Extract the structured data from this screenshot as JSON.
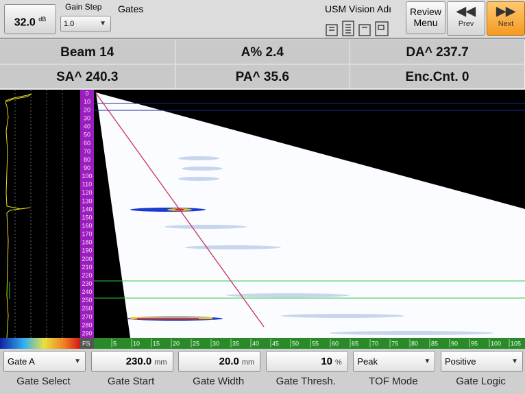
{
  "top_bar": {
    "gain": {
      "value": "32.0",
      "unit": "dB"
    },
    "gain_step": {
      "label": "Gain Step",
      "value": "1.0"
    },
    "screen_title": "Gates",
    "device": "USM Vision Adı",
    "review": "Review Menu",
    "prev": "Prev",
    "next": "Next"
  },
  "readings": [
    [
      "Beam 14",
      "A% 2.4",
      "DA^ 237.7"
    ],
    [
      "SA^ 240.3",
      "PA^ 35.6",
      "Enc.Cnt. 0"
    ]
  ],
  "depth_scale": [
    0,
    10,
    20,
    30,
    40,
    50,
    60,
    70,
    80,
    90,
    100,
    110,
    120,
    130,
    140,
    150,
    160,
    170,
    180,
    190,
    200,
    210,
    220,
    230,
    240,
    250,
    260,
    270,
    280,
    290
  ],
  "scan_scale": {
    "origin": "FS",
    "ticks": [
      5,
      10,
      15,
      20,
      25,
      30,
      35,
      40,
      45,
      50,
      55,
      60,
      65,
      70,
      75,
      80,
      85,
      90,
      95,
      100,
      105
    ]
  },
  "controls": [
    {
      "value": "Gate A",
      "label": "Gate Select"
    },
    {
      "value": "230.0",
      "unit": "mm",
      "label": "Gate Start"
    },
    {
      "value": "20.0",
      "unit": "mm",
      "label": "Gate Width"
    },
    {
      "value": "10",
      "unit": "%",
      "label": "Gate Thresh."
    },
    {
      "value": "Peak",
      "label": "TOF Mode"
    },
    {
      "value": "Positive",
      "label": "Gate Logic"
    }
  ]
}
